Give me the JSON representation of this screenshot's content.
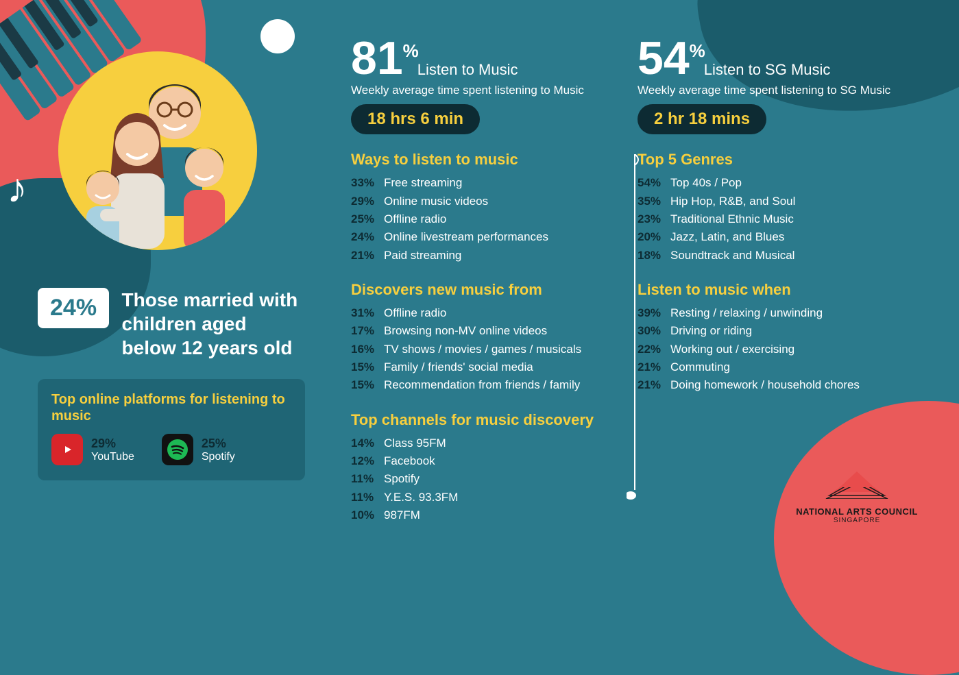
{
  "colors": {
    "background": "#2b7a8c",
    "dark_teal": "#1b5c6b",
    "coral": "#ea5a5a",
    "yellow": "#f7cf3e",
    "pill_bg": "#0d2b33",
    "pct_text": "#0d2b33"
  },
  "left": {
    "badge_pct": "24%",
    "badge_desc": "Those married with children aged below 12 years old",
    "platforms_title": "Top online platforms for listening to music",
    "platforms": [
      {
        "name": "YouTube",
        "pct": "29%",
        "icon": "youtube"
      },
      {
        "name": "Spotify",
        "pct": "25%",
        "icon": "spotify"
      }
    ]
  },
  "mid": {
    "big_num": "81",
    "big_unit": "%",
    "big_label": "Listen to Music",
    "caption": "Weekly average time spent listening to Music",
    "pill": "18 hrs 6 min",
    "sections": [
      {
        "title": "Ways to listen to music",
        "items": [
          {
            "pct": "33%",
            "label": "Free streaming"
          },
          {
            "pct": "29%",
            "label": "Online music videos"
          },
          {
            "pct": "25%",
            "label": "Offline radio"
          },
          {
            "pct": "24%",
            "label": "Online livestream performances"
          },
          {
            "pct": "21%",
            "label": "Paid streaming"
          }
        ]
      },
      {
        "title": "Discovers new music from",
        "items": [
          {
            "pct": "31%",
            "label": "Offline radio"
          },
          {
            "pct": "17%",
            "label": "Browsing non-MV online videos"
          },
          {
            "pct": "16%",
            "label": "TV shows / movies / games / musicals"
          },
          {
            "pct": "15%",
            "label": "Family / friends' social media"
          },
          {
            "pct": "15%",
            "label": "Recommendation from friends / family"
          }
        ]
      },
      {
        "title": "Top channels for music discovery",
        "items": [
          {
            "pct": "14%",
            "label": "Class 95FM"
          },
          {
            "pct": "12%",
            "label": "Facebook"
          },
          {
            "pct": "11%",
            "label": "Spotify"
          },
          {
            "pct": "11%",
            "label": "Y.E.S. 93.3FM"
          },
          {
            "pct": "10%",
            "label": "987FM"
          }
        ]
      }
    ]
  },
  "right": {
    "big_num": "54",
    "big_unit": "%",
    "big_label": "Listen to SG Music",
    "caption": "Weekly average time spent listening to SG Music",
    "pill": "2 hr 18 mins",
    "sections": [
      {
        "title": "Top 5 Genres",
        "items": [
          {
            "pct": "54%",
            "label": "Top 40s / Pop"
          },
          {
            "pct": "35%",
            "label": "Hip Hop, R&B, and Soul"
          },
          {
            "pct": "23%",
            "label": "Traditional Ethnic Music"
          },
          {
            "pct": "20%",
            "label": "Jazz, Latin, and Blues"
          },
          {
            "pct": "18%",
            "label": "Soundtrack and Musical"
          }
        ]
      },
      {
        "title": "Listen to music when",
        "items": [
          {
            "pct": "39%",
            "label": "Resting / relaxing / unwinding"
          },
          {
            "pct": "30%",
            "label": "Driving or riding"
          },
          {
            "pct": "22%",
            "label": "Working out / exercising"
          },
          {
            "pct": "21%",
            "label": "Commuting"
          },
          {
            "pct": "21%",
            "label": "Doing homework / household chores"
          }
        ]
      }
    ]
  },
  "logo": {
    "line1": "NATIONAL ARTS COUNCIL",
    "line2": "SINGAPORE"
  }
}
